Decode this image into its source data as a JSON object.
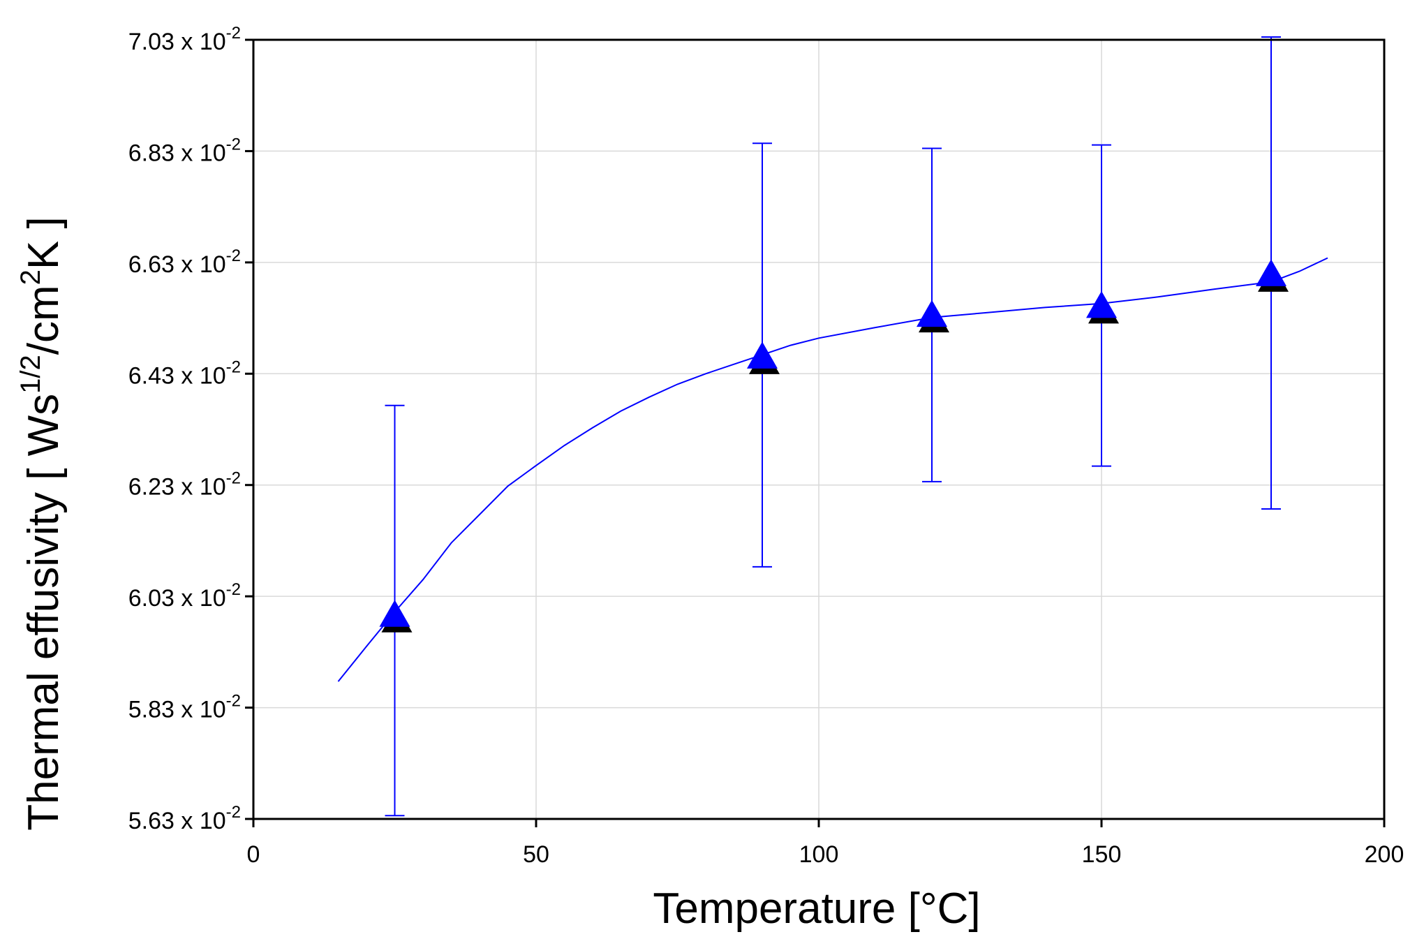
{
  "chart_data": {
    "type": "scatter",
    "title": "",
    "xlabel": "Temperature [°C]",
    "ylabel": "Thermal effusivity [ Ws^1/2/cm^2K ]",
    "xlim": [
      0,
      200
    ],
    "ylim": [
      0.0563,
      0.0703
    ],
    "grid": true,
    "legend": "none",
    "x_ticks": [
      {
        "value": 0,
        "label": "0"
      },
      {
        "value": 50,
        "label": "50"
      },
      {
        "value": 100,
        "label": "100"
      },
      {
        "value": 150,
        "label": "150"
      },
      {
        "value": 200,
        "label": "200"
      }
    ],
    "y_ticks": [
      {
        "value": 0.0563,
        "mantissa": "5.63 x 10",
        "exponent": "-2"
      },
      {
        "value": 0.0583,
        "mantissa": "5.83 x 10",
        "exponent": "-2"
      },
      {
        "value": 0.0603,
        "mantissa": "6.03 x 10",
        "exponent": "-2"
      },
      {
        "value": 0.0623,
        "mantissa": "6.23 x 10",
        "exponent": "-2"
      },
      {
        "value": 0.0643,
        "mantissa": "6.43 x 10",
        "exponent": "-2"
      },
      {
        "value": 0.0663,
        "mantissa": "6.63 x 10",
        "exponent": "-2"
      },
      {
        "value": 0.0683,
        "mantissa": "6.83 x 10",
        "exponent": "-2"
      },
      {
        "value": 0.0703,
        "mantissa": "7.03 x 10",
        "exponent": "-2"
      }
    ],
    "series": [
      {
        "marker": "triangle",
        "color": "#0000ff",
        "points": [
          {
            "x": 25,
            "y": 0.05996,
            "err_low": 0.05636,
            "err_high": 0.06373
          },
          {
            "x": 90,
            "y": 0.0646,
            "err_low": 0.06083,
            "err_high": 0.06844
          },
          {
            "x": 120,
            "y": 0.06535,
            "err_low": 0.06236,
            "err_high": 0.06835
          },
          {
            "x": 150,
            "y": 0.06551,
            "err_low": 0.06264,
            "err_high": 0.06841
          },
          {
            "x": 180,
            "y": 0.06608,
            "err_low": 0.06187,
            "err_high": 0.07035
          }
        ]
      },
      {
        "line": "fit",
        "color": "#0000ff",
        "points": [
          {
            "x": 15,
            "y": 0.05877
          },
          {
            "x": 20,
            "y": 0.0594
          },
          {
            "x": 25,
            "y": 0.06002
          },
          {
            "x": 30,
            "y": 0.0606
          },
          {
            "x": 35,
            "y": 0.06126
          },
          {
            "x": 40,
            "y": 0.06177
          },
          {
            "x": 45,
            "y": 0.06228
          },
          {
            "x": 50,
            "y": 0.06265
          },
          {
            "x": 55,
            "y": 0.06301
          },
          {
            "x": 60,
            "y": 0.06333
          },
          {
            "x": 65,
            "y": 0.06363
          },
          {
            "x": 70,
            "y": 0.06388
          },
          {
            "x": 75,
            "y": 0.06411
          },
          {
            "x": 80,
            "y": 0.0643
          },
          {
            "x": 85,
            "y": 0.06447
          },
          {
            "x": 90,
            "y": 0.06464
          },
          {
            "x": 95,
            "y": 0.06481
          },
          {
            "x": 100,
            "y": 0.06494
          },
          {
            "x": 110,
            "y": 0.06513
          },
          {
            "x": 120,
            "y": 0.06531
          },
          {
            "x": 130,
            "y": 0.0654
          },
          {
            "x": 140,
            "y": 0.06549
          },
          {
            "x": 150,
            "y": 0.06556
          },
          {
            "x": 160,
            "y": 0.06568
          },
          {
            "x": 170,
            "y": 0.06582
          },
          {
            "x": 180,
            "y": 0.06595
          },
          {
            "x": 185,
            "y": 0.06614
          },
          {
            "x": 190,
            "y": 0.06638
          }
        ]
      }
    ]
  }
}
